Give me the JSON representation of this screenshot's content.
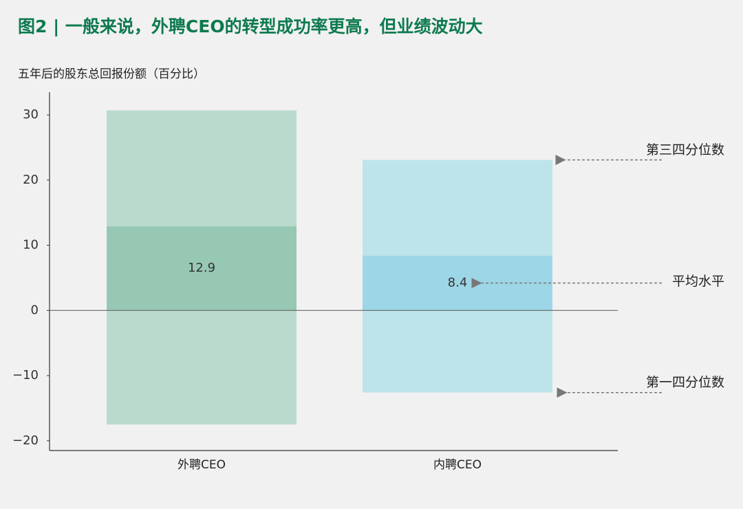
{
  "chart_data": {
    "type": "range",
    "title": "图2 | 一般来说，外聘CEO的转型成功率更高，但业绩波动大",
    "y_label": "五年后的股东总回报份额（百分比）",
    "categories": [
      "外聘CEO",
      "内聘CEO"
    ],
    "q3": [
      30.7,
      23.1
    ],
    "q1": [
      -17.5,
      -12.6
    ],
    "mean": [
      12.9,
      8.4
    ],
    "range_colors": [
      "#b9dacd",
      "#bde4ea"
    ],
    "mean_colors": [
      "#97c8b3",
      "#9dd6e6"
    ],
    "annotations": {
      "q3": "第三四分位数",
      "mean": "平均水平",
      "q1": "第一四分位数"
    },
    "ylim": [
      -21.5,
      33.5
    ],
    "yticks": [
      {
        "value": -20,
        "label": "−20"
      },
      {
        "value": -10,
        "label": "−10"
      },
      0,
      10,
      20,
      30
    ]
  }
}
